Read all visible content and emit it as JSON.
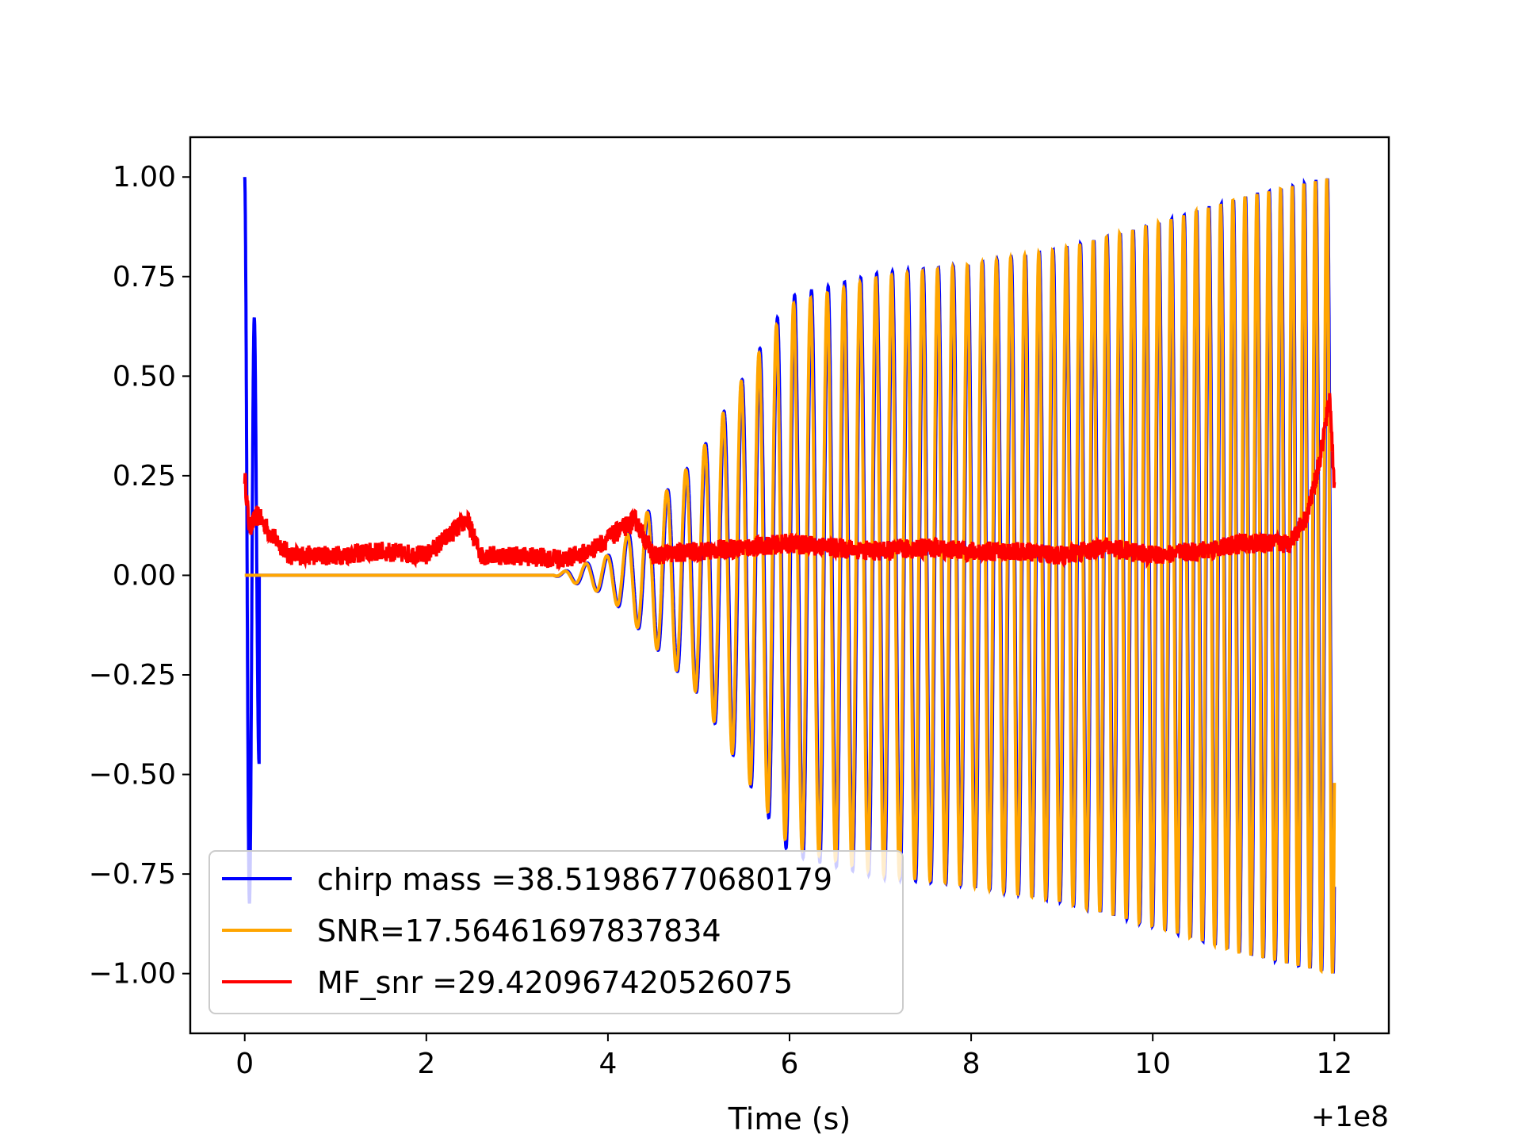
{
  "chart_data": {
    "type": "line",
    "title": "",
    "xlabel": "Time (s)",
    "ylabel": "",
    "x_offset_label": "+1e8",
    "xlim": [
      -0.6,
      12.6
    ],
    "ylim": [
      -1.15,
      1.1
    ],
    "x_ticks": [
      0,
      2,
      4,
      6,
      8,
      10,
      12
    ],
    "x_tick_labels": [
      "0",
      "2",
      "4",
      "6",
      "8",
      "10",
      "12"
    ],
    "y_ticks": [
      1.0,
      0.75,
      0.5,
      0.25,
      0.0,
      -0.25,
      -0.5,
      -0.75,
      -1.0
    ],
    "y_tick_labels": [
      "1.00",
      "0.75",
      "0.50",
      "0.25",
      "0.00",
      "−0.25",
      "−0.50",
      "−0.75",
      "−1.00"
    ],
    "grid": false,
    "legend_position": "lower-left",
    "series": [
      {
        "name": "chirp mass =38.51986770680179",
        "color": "#0000ff",
        "description_points": {
          "x_start": 0.0,
          "x_end": 12.0,
          "envelope_x": [
            0.0,
            0.15,
            3.4,
            4.0,
            5.0,
            6.0,
            7.0,
            8.0,
            9.0,
            10.0,
            11.0,
            12.0
          ],
          "envelope_y": [
            1.0,
            0.0,
            0.0,
            0.05,
            0.3,
            0.7,
            0.76,
            0.78,
            0.82,
            0.88,
            0.95,
            1.0
          ]
        }
      },
      {
        "name": "SNR=17.56461697837834",
        "color": "#ffa500",
        "description_points": {
          "x_start": 0.0,
          "x_end": 12.0,
          "envelope_x": [
            0.0,
            3.4,
            4.0,
            5.0,
            5.5,
            6.0,
            7.0,
            8.0,
            9.0,
            10.0,
            11.0,
            12.0
          ],
          "envelope_y": [
            0.0,
            0.0,
            0.05,
            0.3,
            0.5,
            0.68,
            0.75,
            0.78,
            0.82,
            0.88,
            0.95,
            1.0
          ]
        }
      },
      {
        "name": "MF_snr =29.420967420526075",
        "color": "#ff0000",
        "points": [
          [
            0.0,
            0.25
          ],
          [
            0.05,
            0.12
          ],
          [
            0.15,
            0.15
          ],
          [
            0.3,
            0.1
          ],
          [
            0.5,
            0.05
          ],
          [
            1.0,
            0.05
          ],
          [
            1.5,
            0.06
          ],
          [
            2.0,
            0.05
          ],
          [
            2.45,
            0.14
          ],
          [
            2.6,
            0.05
          ],
          [
            3.0,
            0.05
          ],
          [
            3.5,
            0.04
          ],
          [
            3.8,
            0.06
          ],
          [
            4.3,
            0.14
          ],
          [
            4.5,
            0.05
          ],
          [
            5.0,
            0.06
          ],
          [
            6.0,
            0.08
          ],
          [
            6.5,
            0.07
          ],
          [
            7.0,
            0.06
          ],
          [
            7.5,
            0.07
          ],
          [
            8.0,
            0.06
          ],
          [
            8.5,
            0.06
          ],
          [
            9.0,
            0.05
          ],
          [
            9.5,
            0.07
          ],
          [
            10.0,
            0.05
          ],
          [
            10.5,
            0.06
          ],
          [
            11.0,
            0.08
          ],
          [
            11.5,
            0.08
          ],
          [
            11.7,
            0.15
          ],
          [
            11.85,
            0.3
          ],
          [
            11.95,
            0.45
          ],
          [
            12.0,
            0.22
          ]
        ]
      }
    ]
  }
}
